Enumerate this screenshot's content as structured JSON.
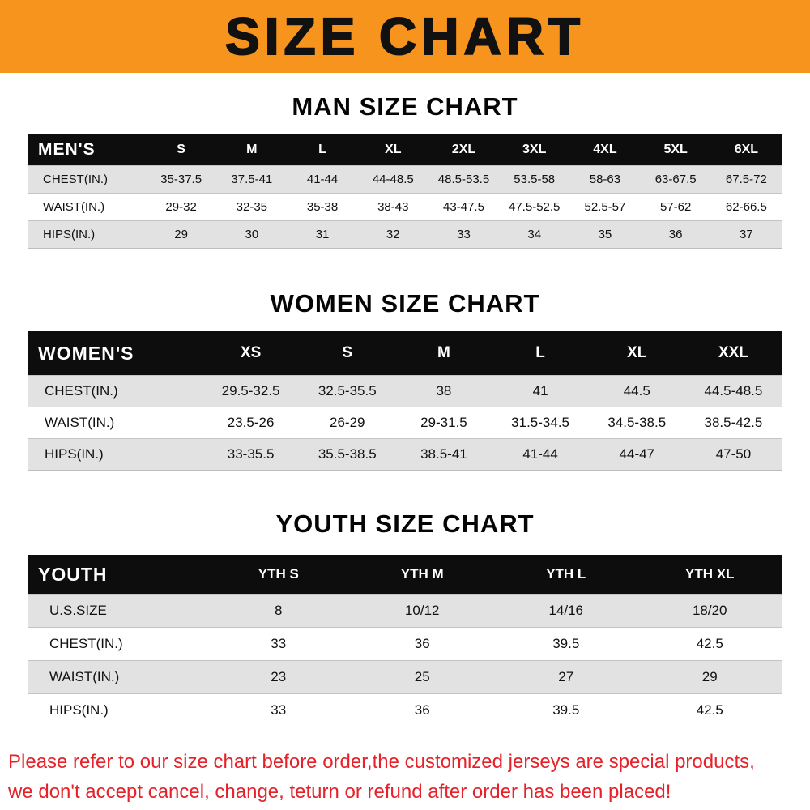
{
  "banner": {
    "title": "SIZE CHART"
  },
  "colors": {
    "banner_bg": "#f7941e",
    "table_header_bg": "#0d0d0d",
    "footer_text": "#e62129"
  },
  "sections": [
    {
      "heading": "MAN SIZE CHART",
      "table": {
        "header_label": "MEN'S",
        "columns": [
          "S",
          "M",
          "L",
          "XL",
          "2XL",
          "3XL",
          "4XL",
          "5XL",
          "6XL"
        ],
        "rows": [
          {
            "label": "CHEST(IN.)",
            "values": [
              "35-37.5",
              "37.5-41",
              "41-44",
              "44-48.5",
              "48.5-53.5",
              "53.5-58",
              "58-63",
              "63-67.5",
              "67.5-72"
            ]
          },
          {
            "label": "WAIST(IN.)",
            "values": [
              "29-32",
              "32-35",
              "35-38",
              "38-43",
              "43-47.5",
              "47.5-52.5",
              "52.5-57",
              "57-62",
              "62-66.5"
            ]
          },
          {
            "label": "HIPS(IN.)",
            "values": [
              "29",
              "30",
              "31",
              "32",
              "33",
              "34",
              "35",
              "36",
              "37"
            ]
          }
        ]
      }
    },
    {
      "heading": "WOMEN SIZE CHART",
      "table": {
        "header_label": "WOMEN'S",
        "columns": [
          "XS",
          "S",
          "M",
          "L",
          "XL",
          "XXL"
        ],
        "rows": [
          {
            "label": "CHEST(IN.)",
            "values": [
              "29.5-32.5",
              "32.5-35.5",
              "38",
              "41",
              "44.5",
              "44.5-48.5"
            ]
          },
          {
            "label": "WAIST(IN.)",
            "values": [
              "23.5-26",
              "26-29",
              "29-31.5",
              "31.5-34.5",
              "34.5-38.5",
              "38.5-42.5"
            ]
          },
          {
            "label": "HIPS(IN.)",
            "values": [
              "33-35.5",
              "35.5-38.5",
              "38.5-41",
              "41-44",
              "44-47",
              "47-50"
            ]
          }
        ]
      }
    },
    {
      "heading": "YOUTH SIZE CHART",
      "table": {
        "header_label": "YOUTH",
        "columns": [
          "YTH S",
          "YTH M",
          "YTH L",
          "YTH XL"
        ],
        "rows": [
          {
            "label": "U.S.SIZE",
            "values": [
              "8",
              "10/12",
              "14/16",
              "18/20"
            ]
          },
          {
            "label": "CHEST(IN.)",
            "values": [
              "33",
              "36",
              "39.5",
              "42.5"
            ]
          },
          {
            "label": "WAIST(IN.)",
            "values": [
              "23",
              "25",
              "27",
              "29"
            ]
          },
          {
            "label": "HIPS(IN.)",
            "values": [
              "33",
              "36",
              "39.5",
              "42.5"
            ]
          }
        ]
      }
    }
  ],
  "footer": {
    "line1": "Please refer to our size chart before order,the customized jerseys are special products,",
    "line2": "we don't accept cancel, change, teturn or refund after order has been placed!"
  }
}
